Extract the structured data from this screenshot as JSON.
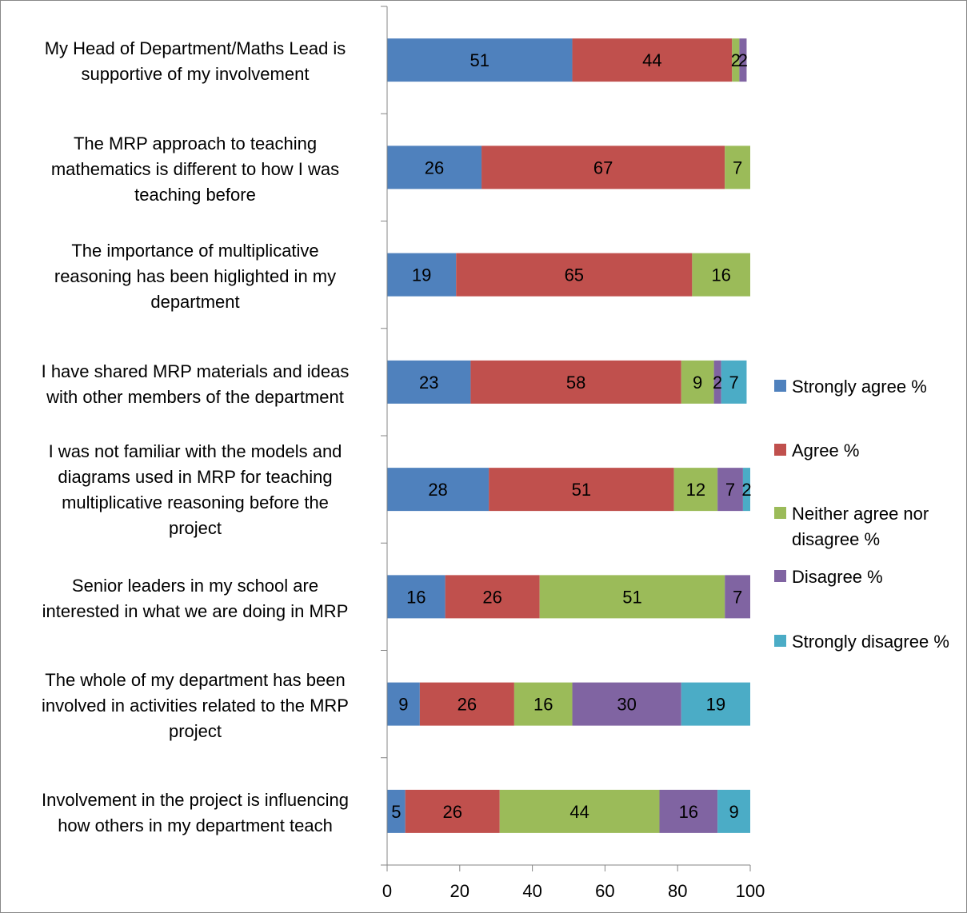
{
  "chart_data": {
    "type": "bar",
    "orientation": "horizontal",
    "stacked": true,
    "title": "",
    "xlabel": "",
    "ylabel": "",
    "xlim": [
      0,
      100
    ],
    "x_ticks": [
      0,
      20,
      40,
      60,
      80,
      100
    ],
    "grid": false,
    "legend_position": "right",
    "categories": [
      "My Head of Department/Maths Lead is supportive of my involvement",
      "The MRP approach to teaching mathematics is different to how I was teaching before",
      "The importance of multiplicative reasoning has been higlighted in my department",
      "I have shared MRP materials and ideas with other members of the department",
      "I was not familiar with the models and diagrams used in MRP for teaching multiplicative reasoning before the project",
      "Senior leaders in my school are interested in what we are doing in MRP",
      "The whole of my department has been involved in activities related to the MRP project",
      "Involvement in the project is influencing how others in my department teach"
    ],
    "series": [
      {
        "name": "Strongly agree %",
        "color": "#4F81BD",
        "values": [
          51,
          26,
          19,
          23,
          28,
          16,
          9,
          5
        ]
      },
      {
        "name": "Agree %",
        "color": "#C0504D",
        "values": [
          44,
          67,
          65,
          58,
          51,
          26,
          26,
          26
        ]
      },
      {
        "name": "Neither agree nor disagree %",
        "color": "#9BBB59",
        "values": [
          2,
          7,
          16,
          9,
          12,
          51,
          16,
          44
        ]
      },
      {
        "name": "Disagree %",
        "color": "#8064A2",
        "values": [
          2,
          0,
          0,
          2,
          7,
          7,
          30,
          16
        ]
      },
      {
        "name": "Strongly disagree %",
        "color": "#4BACC6",
        "values": [
          0,
          0,
          0,
          7,
          2,
          0,
          19,
          9
        ]
      }
    ]
  }
}
